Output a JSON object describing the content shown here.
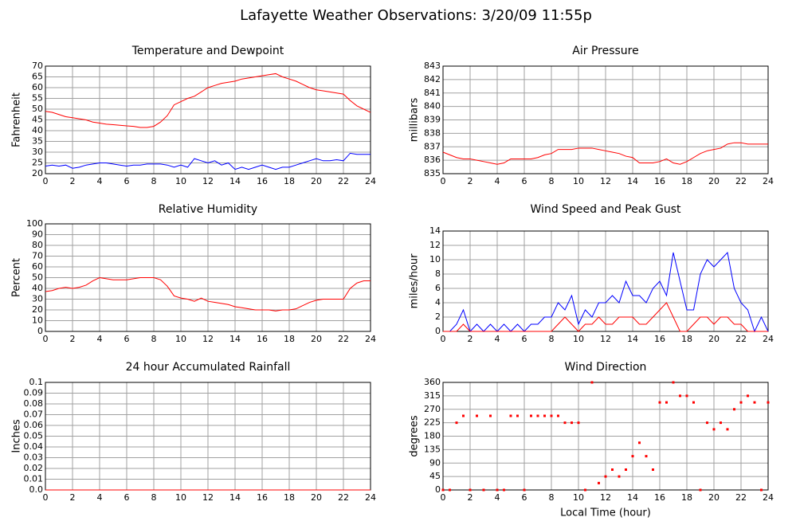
{
  "title": "Lafayette Weather Observations: 3/20/09 11:55p",
  "chart_data": [
    {
      "type": "line",
      "title": "Temperature and Dewpoint",
      "ylabel": "Fahrenheit",
      "x": [
        0,
        0.5,
        1,
        1.5,
        2,
        2.5,
        3,
        3.5,
        4,
        4.5,
        5,
        5.5,
        6,
        6.5,
        7,
        7.5,
        8,
        8.5,
        9,
        9.5,
        10,
        10.5,
        11,
        11.5,
        12,
        12.5,
        13,
        13.5,
        14,
        14.5,
        15,
        15.5,
        16,
        16.5,
        17,
        17.5,
        18,
        18.5,
        19,
        19.5,
        20,
        20.5,
        21,
        21.5,
        22,
        22.5,
        23,
        23.5,
        24
      ],
      "series": [
        {
          "color": "#ff0000",
          "values": [
            49,
            48.5,
            47.5,
            46.5,
            46,
            45.5,
            45,
            44,
            43.5,
            43,
            42.8,
            42.5,
            42.2,
            42,
            41.5,
            41.5,
            42,
            44,
            47,
            52,
            53.5,
            55,
            56,
            58,
            60,
            61,
            62,
            62.5,
            63,
            64,
            64.5,
            65,
            65.5,
            66,
            66.5,
            65,
            64,
            63,
            61.5,
            60,
            59,
            58.5,
            58,
            57.5,
            57,
            54,
            51.5,
            50,
            48.5
          ]
        },
        {
          "color": "#0000ff",
          "values": [
            23.5,
            24,
            23.5,
            24,
            22.5,
            23,
            24,
            24.5,
            25,
            25,
            24.5,
            24,
            23.5,
            24,
            24,
            24.5,
            24.5,
            24.5,
            24,
            23,
            24,
            23,
            27,
            26,
            25,
            26,
            24,
            25,
            22,
            23,
            22,
            23,
            24,
            23,
            22,
            23,
            23,
            24,
            25,
            26,
            27,
            26,
            26,
            26.5,
            26,
            29.5,
            29,
            29,
            29
          ]
        }
      ],
      "xlim": [
        0,
        24
      ],
      "xticks": [
        0,
        2,
        4,
        6,
        8,
        10,
        12,
        14,
        16,
        18,
        20,
        22,
        24
      ],
      "ylim": [
        20,
        70
      ],
      "yticks": [
        20,
        25,
        30,
        35,
        40,
        45,
        50,
        55,
        60,
        65,
        70
      ],
      "grid": true
    },
    {
      "type": "line",
      "title": "Air Pressure",
      "ylabel": "millibars",
      "x": [
        0,
        0.5,
        1,
        1.5,
        2,
        2.5,
        3,
        3.5,
        4,
        4.5,
        5,
        5.5,
        6,
        6.5,
        7,
        7.5,
        8,
        8.5,
        9,
        9.5,
        10,
        10.5,
        11,
        11.5,
        12,
        12.5,
        13,
        13.5,
        14,
        14.5,
        15,
        15.5,
        16,
        16.5,
        17,
        17.5,
        18,
        18.5,
        19,
        19.5,
        20,
        20.5,
        21,
        21.5,
        22,
        22.5,
        23,
        23.5,
        24
      ],
      "series": [
        {
          "color": "#ff0000",
          "values": [
            836.6,
            836.4,
            836.2,
            836.1,
            836.1,
            836,
            835.9,
            835.8,
            835.7,
            835.8,
            836.1,
            836.1,
            836.1,
            836.1,
            836.2,
            836.4,
            836.5,
            836.8,
            836.8,
            836.8,
            836.9,
            836.9,
            836.9,
            836.8,
            836.7,
            836.6,
            836.5,
            836.3,
            836.2,
            835.8,
            835.8,
            835.8,
            835.9,
            836.1,
            835.8,
            835.7,
            835.9,
            836.2,
            836.5,
            836.7,
            836.8,
            836.9,
            837.2,
            837.3,
            837.3,
            837.2,
            837.2,
            837.2,
            837.2
          ]
        }
      ],
      "xlim": [
        0,
        24
      ],
      "xticks": [
        0,
        2,
        4,
        6,
        8,
        10,
        12,
        14,
        16,
        18,
        20,
        22,
        24
      ],
      "ylim": [
        835,
        843
      ],
      "yticks": [
        835,
        836,
        837,
        838,
        839,
        840,
        841,
        842,
        843
      ],
      "grid": true
    },
    {
      "type": "line",
      "title": "Relative Humidity",
      "ylabel": "Percent",
      "x": [
        0,
        0.5,
        1,
        1.5,
        2,
        2.5,
        3,
        3.5,
        4,
        4.5,
        5,
        5.5,
        6,
        6.5,
        7,
        7.5,
        8,
        8.5,
        9,
        9.5,
        10,
        10.5,
        11,
        11.5,
        12,
        12.5,
        13,
        13.5,
        14,
        14.5,
        15,
        15.5,
        16,
        16.5,
        17,
        17.5,
        18,
        18.5,
        19,
        19.5,
        20,
        20.5,
        21,
        21.5,
        22,
        22.5,
        23,
        23.5,
        24
      ],
      "series": [
        {
          "color": "#ff0000",
          "values": [
            37,
            38,
            40,
            41,
            40,
            41,
            43,
            47,
            50,
            49,
            48,
            48,
            48,
            49,
            50,
            50,
            50,
            48,
            42,
            33,
            31,
            30,
            28,
            31,
            28,
            27,
            26,
            25,
            23,
            22,
            21,
            20,
            20,
            20,
            19,
            20,
            20,
            21,
            24,
            27,
            29,
            30,
            30,
            30,
            30,
            40,
            45,
            47,
            47
          ]
        }
      ],
      "xlim": [
        0,
        24
      ],
      "xticks": [
        0,
        2,
        4,
        6,
        8,
        10,
        12,
        14,
        16,
        18,
        20,
        22,
        24
      ],
      "ylim": [
        0,
        100
      ],
      "yticks": [
        0,
        10,
        20,
        30,
        40,
        50,
        60,
        70,
        80,
        90,
        100
      ],
      "grid": true
    },
    {
      "type": "line",
      "title": "Wind Speed and Peak Gust",
      "ylabel": "miles/hour",
      "x": [
        0,
        0.5,
        1,
        1.5,
        2,
        2.5,
        3,
        3.5,
        4,
        4.5,
        5,
        5.5,
        6,
        6.5,
        7,
        7.5,
        8,
        8.5,
        9,
        9.5,
        10,
        10.5,
        11,
        11.5,
        12,
        12.5,
        13,
        13.5,
        14,
        14.5,
        15,
        15.5,
        16,
        16.5,
        17,
        17.5,
        18,
        18.5,
        19,
        19.5,
        20,
        20.5,
        21,
        21.5,
        22,
        22.5,
        23,
        23.5,
        24
      ],
      "series": [
        {
          "color": "#0000ff",
          "values": [
            0,
            0,
            1,
            3,
            0,
            1,
            0,
            1,
            0,
            1,
            0,
            1,
            0,
            1,
            1,
            2,
            2,
            4,
            3,
            5,
            1,
            3,
            2,
            4,
            4,
            5,
            4,
            7,
            5,
            5,
            4,
            6,
            7,
            5,
            11,
            7,
            3,
            3,
            8,
            10,
            9,
            10,
            11,
            6,
            4,
            3,
            0,
            2,
            0
          ]
        },
        {
          "color": "#ff0000",
          "values": [
            0,
            0,
            0,
            1,
            0,
            0,
            0,
            0,
            0,
            0,
            0,
            0,
            0,
            0,
            0,
            0,
            0,
            1,
            2,
            1,
            0,
            1,
            1,
            2,
            1,
            1,
            2,
            2,
            2,
            1,
            1,
            2,
            3,
            4,
            2,
            0,
            0,
            1,
            2,
            2,
            1,
            2,
            2,
            1,
            1,
            0,
            0,
            0,
            0
          ]
        }
      ],
      "xlim": [
        0,
        24
      ],
      "xticks": [
        0,
        2,
        4,
        6,
        8,
        10,
        12,
        14,
        16,
        18,
        20,
        22,
        24
      ],
      "ylim": [
        0,
        14
      ],
      "yticks": [
        0,
        2,
        4,
        6,
        8,
        10,
        12,
        14
      ],
      "grid": true
    },
    {
      "type": "line",
      "title": "24 hour Accumulated Rainfall",
      "ylabel": "Inches",
      "x": [
        0,
        24
      ],
      "series": [
        {
          "color": "#ff0000",
          "values": [
            0,
            0
          ]
        }
      ],
      "xlim": [
        0,
        24
      ],
      "xticks": [
        0,
        2,
        4,
        6,
        8,
        10,
        12,
        14,
        16,
        18,
        20,
        22,
        24
      ],
      "ylim": [
        0,
        0.1
      ],
      "yticks": [
        {
          "value": 0,
          "label": "0.0"
        },
        0.01,
        0.02,
        0.03,
        0.04,
        0.05,
        0.06,
        0.07,
        0.08,
        0.09,
        0.1
      ],
      "grid": true
    },
    {
      "type": "scatter",
      "title": "Wind Direction",
      "ylabel": "degrees",
      "xlabel": "Local Time (hour)",
      "x": [
        0,
        0.5,
        1,
        1.5,
        2,
        2.5,
        3,
        3.5,
        4,
        4.5,
        5,
        5.5,
        6,
        6.5,
        7,
        7.5,
        8,
        8.5,
        9,
        9.5,
        10,
        10.5,
        11,
        11.5,
        12,
        12.5,
        13,
        13.5,
        14,
        14.5,
        15,
        15.5,
        16,
        16.5,
        17,
        17.5,
        18,
        18.5,
        19,
        19.5,
        20,
        20.5,
        21,
        21.5,
        22,
        22.5,
        23,
        23.5,
        24
      ],
      "series": [
        {
          "color": "#ff0000",
          "values": [
            0,
            0,
            225,
            248,
            0,
            248,
            0,
            248,
            0,
            0,
            248,
            248,
            0,
            248,
            248,
            248,
            248,
            248,
            225,
            225,
            225,
            0,
            360,
            23,
            45,
            68,
            45,
            68,
            113,
            158,
            113,
            68,
            293,
            293,
            360,
            315,
            315,
            293,
            0,
            225,
            203,
            225,
            203,
            270,
            293,
            315,
            293,
            0,
            293
          ]
        }
      ],
      "xlim": [
        0,
        24
      ],
      "xticks": [
        0,
        2,
        4,
        6,
        8,
        10,
        12,
        14,
        16,
        18,
        20,
        22,
        24
      ],
      "ylim": [
        0,
        360
      ],
      "yticks": [
        0,
        45,
        90,
        135,
        180,
        225,
        270,
        315,
        360
      ],
      "grid": true
    }
  ]
}
